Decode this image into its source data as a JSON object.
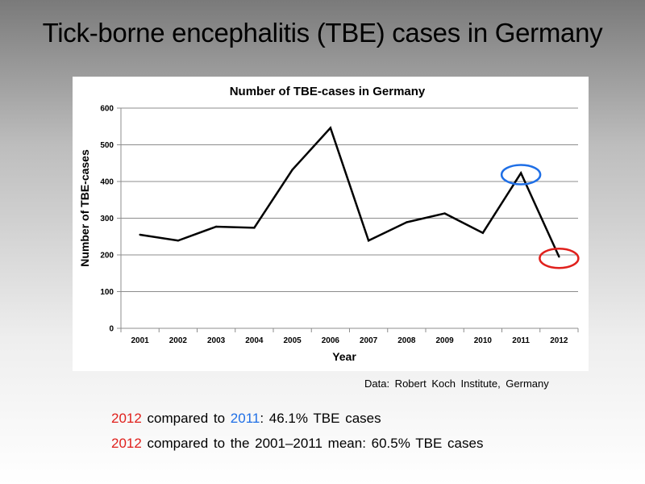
{
  "slide": {
    "title": "Tick-borne encephalitis (TBE) cases in Germany",
    "source": "Data: Robert Koch Institute,  Germany",
    "comparison_1": {
      "year_a": "2012",
      "mid": " compared to ",
      "year_b": "2011",
      "rest": ": 46.1% TBE cases"
    },
    "comparison_2": {
      "year_a": "2012",
      "rest": " compared to the 2001–2011 mean: 60.5% TBE cases"
    },
    "highlight_colors": {
      "red": "#e0201c",
      "blue": "#1f6fe6"
    }
  },
  "chart_data": {
    "type": "line",
    "title": "Number of TBE-cases in Germany",
    "xlabel": "Year",
    "ylabel": "Number of TBE-cases",
    "categories": [
      "2001",
      "2002",
      "2003",
      "2004",
      "2005",
      "2006",
      "2007",
      "2008",
      "2009",
      "2010",
      "2011",
      "2012"
    ],
    "values": [
      255,
      239,
      277,
      274,
      432,
      546,
      239,
      289,
      313,
      260,
      423,
      195
    ],
    "ylim": [
      0,
      600
    ],
    "yticks": [
      0,
      100,
      200,
      300,
      400,
      500,
      600
    ],
    "grid": true,
    "highlights": [
      {
        "category": "2011",
        "color": "#1f6fe6"
      },
      {
        "category": "2012",
        "color": "#e0201c"
      }
    ]
  }
}
